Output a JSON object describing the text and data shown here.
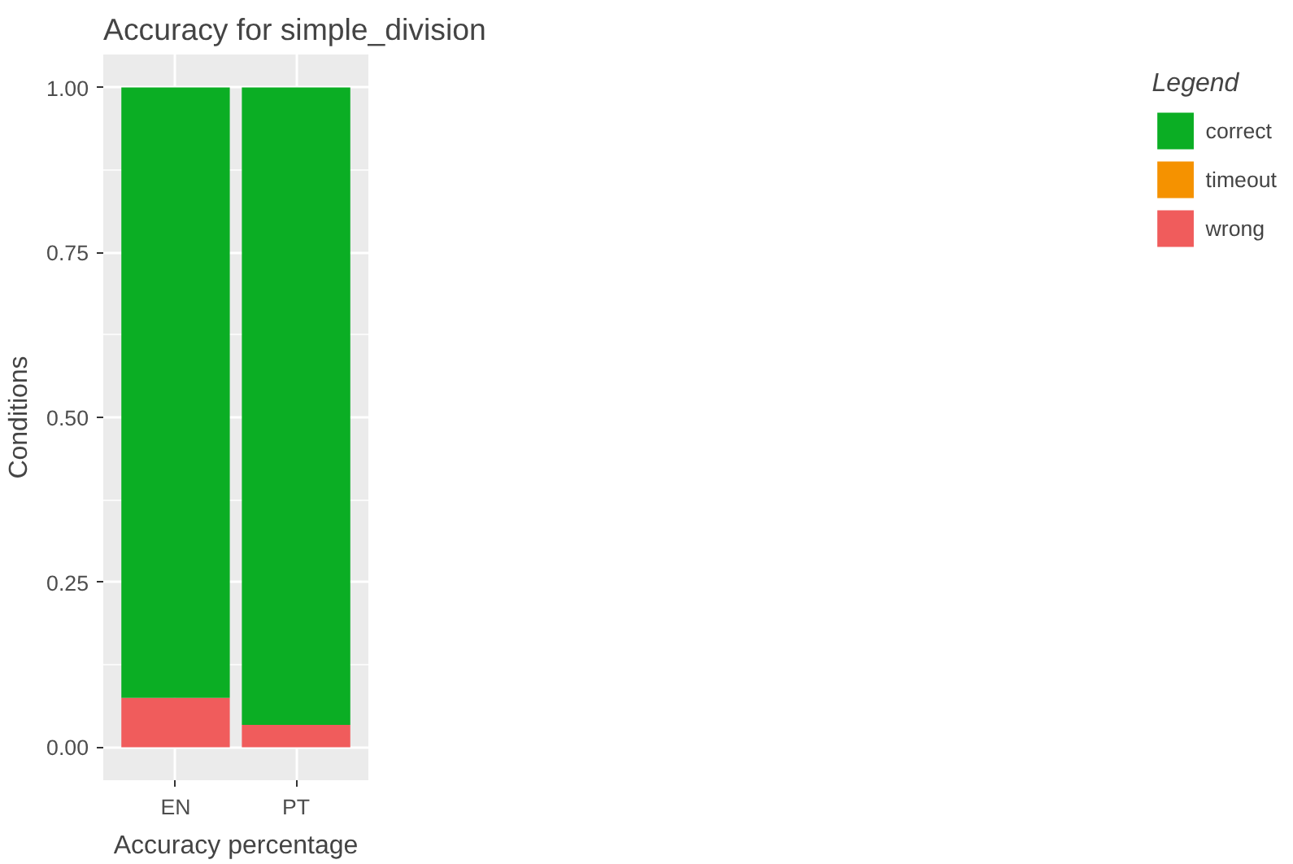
{
  "chart_data": {
    "type": "bar",
    "title": "Accuracy for simple_division",
    "xlabel": "Accuracy percentage",
    "ylabel": "Conditions",
    "legend_title": "Legend",
    "categories": [
      "EN",
      "PT"
    ],
    "stacked": true,
    "series": [
      {
        "name": "wrong",
        "color": "#f05c5c",
        "values": [
          0.075,
          0.034
        ]
      },
      {
        "name": "timeout",
        "color": "#f59200",
        "values": [
          0,
          0
        ]
      },
      {
        "name": "correct",
        "color": "#0bae24",
        "values": [
          0.925,
          0.966
        ]
      }
    ],
    "ylim": [
      -0.05,
      1.05
    ],
    "yticks": [
      {
        "value": 0,
        "label": "0.00"
      },
      {
        "value": 0.25,
        "label": "0.25"
      },
      {
        "value": 0.5,
        "label": "0.50"
      },
      {
        "value": 0.75,
        "label": "0.75"
      },
      {
        "value": 1,
        "label": "1.00"
      }
    ],
    "grid": true,
    "legend": "right"
  }
}
